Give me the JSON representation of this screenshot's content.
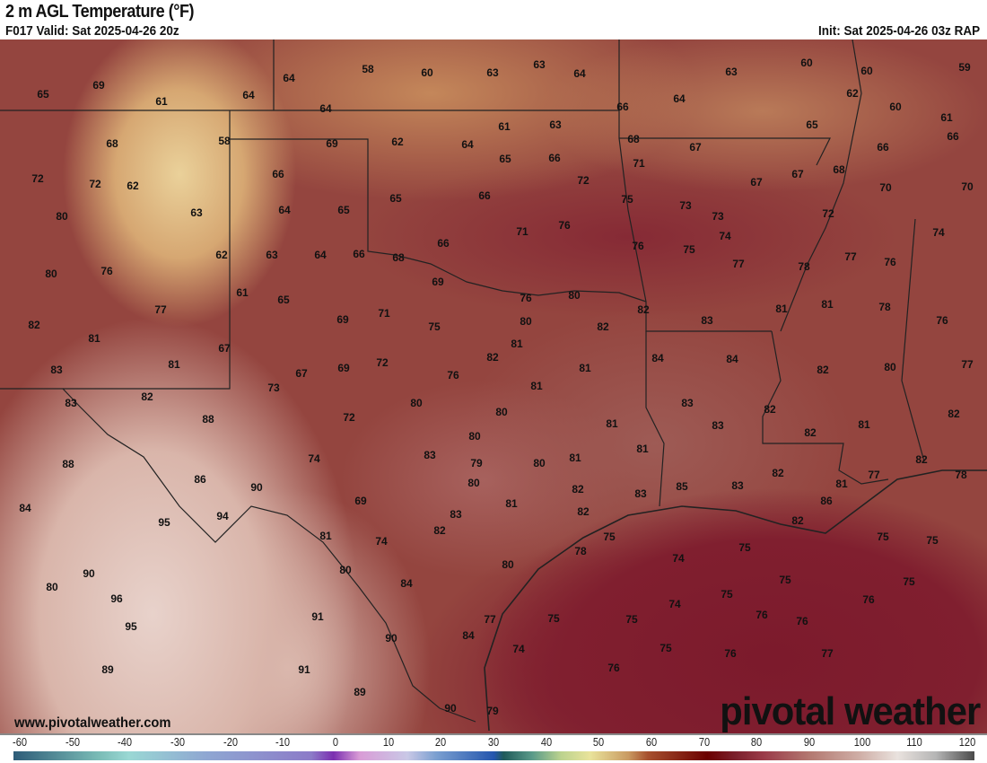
{
  "header": {
    "title": "2 m AGL Temperature (°F)",
    "valid": "F017 Valid: Sat 2025-04-26 20z",
    "init": "Init: Sat 2025-04-26 03z RAP"
  },
  "map": {
    "stations_f": [
      65,
      69,
      61,
      64,
      64,
      58,
      60,
      63,
      63,
      64,
      63,
      60,
      60,
      59,
      68,
      58,
      64,
      69,
      62,
      64,
      61,
      63,
      66,
      64,
      62,
      60,
      65,
      61,
      72,
      72,
      62,
      63,
      66,
      64,
      65,
      65,
      66,
      65,
      66,
      72,
      68,
      71,
      67,
      67,
      67,
      68,
      66,
      66,
      70,
      70,
      80,
      80,
      76,
      62,
      63,
      64,
      66,
      68,
      66,
      71,
      76,
      75,
      73,
      73,
      74,
      76,
      75,
      77,
      78,
      72,
      77,
      76,
      74,
      82,
      81,
      77,
      61,
      65,
      69,
      71,
      69,
      75,
      76,
      80,
      80,
      81,
      82,
      82,
      83,
      81,
      81,
      78,
      76,
      83,
      81,
      67,
      73,
      67,
      69,
      72,
      76,
      82,
      81,
      81,
      84,
      84,
      82,
      80,
      77,
      83,
      82,
      88,
      72,
      80,
      80,
      80,
      81,
      83,
      83,
      82,
      82,
      81,
      82,
      88,
      86,
      90,
      74,
      83,
      79,
      80,
      80,
      81,
      81,
      83,
      85,
      83,
      82,
      81,
      86,
      77,
      82,
      78,
      84,
      95,
      94,
      69,
      83,
      82,
      81,
      82,
      82,
      75,
      82,
      75,
      75,
      81,
      74,
      78,
      74,
      75,
      90,
      80,
      96,
      80,
      84,
      80,
      75,
      75,
      76,
      75,
      95,
      91,
      77,
      75,
      75,
      74,
      76,
      76,
      90,
      84,
      74,
      75,
      76,
      77,
      89,
      91,
      76,
      89,
      90,
      79
    ]
  },
  "footer": {
    "website": "www.pivotalweather.com",
    "logo_text": "pivotal weather"
  },
  "colorbar": {
    "ticks": [
      "-60",
      "-50",
      "-40",
      "-30",
      "-20",
      "-10",
      "0",
      "10",
      "20",
      "30",
      "40",
      "50",
      "60",
      "70",
      "80",
      "90",
      "100",
      "110",
      "120"
    ],
    "range_f": [
      -60,
      120
    ]
  }
}
